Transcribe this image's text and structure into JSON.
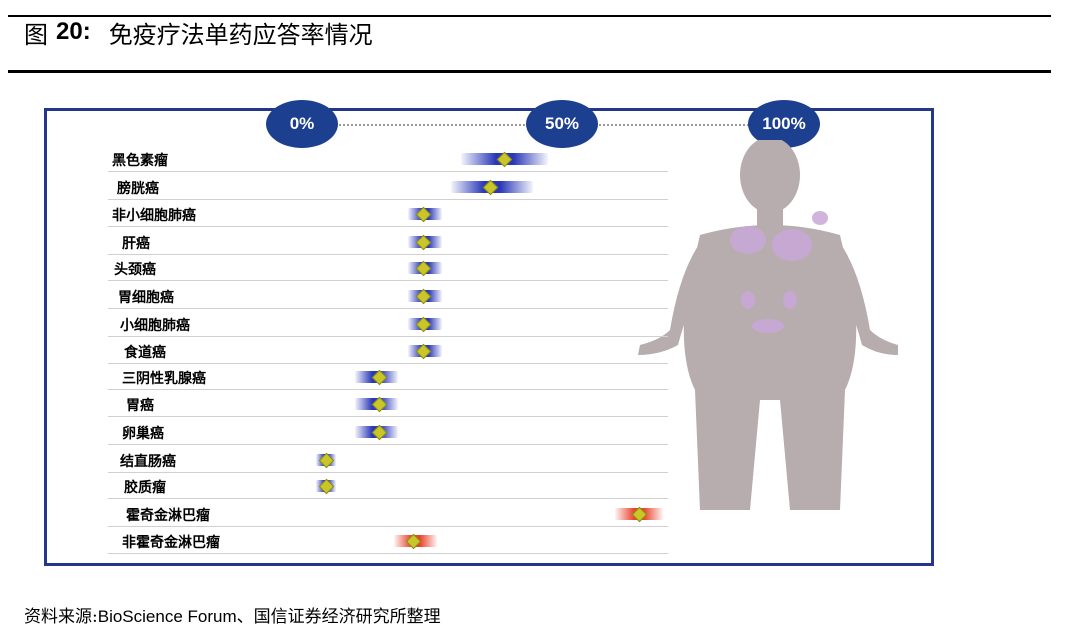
{
  "header": {
    "fig_label": "图",
    "fig_num": "20:",
    "title": "免疫疗法单药应答率情况"
  },
  "chart_data": {
    "type": "range",
    "axis_ticks": [
      "0%",
      "50%",
      "100%"
    ],
    "xlim": [
      0,
      100
    ],
    "categories": [
      "黑色素瘤",
      "膀胱癌",
      "非小细胞肺癌",
      "肝癌",
      "头颈癌",
      "胃细胞癌",
      "小细胞肺癌",
      "食道癌",
      "三阴性乳腺癌",
      "胃癌",
      "卵巢癌",
      "结直肠癌",
      "胶质瘤",
      "霍奇金淋巴瘤",
      "非霍奇金淋巴瘤"
    ],
    "series": [
      {
        "low": 33,
        "mid": 42,
        "high": 51,
        "color": "blue"
      },
      {
        "low": 31,
        "mid": 39,
        "high": 48,
        "color": "blue"
      },
      {
        "low": 22,
        "mid": 25,
        "high": 29,
        "color": "blue"
      },
      {
        "low": 22,
        "mid": 25,
        "high": 29,
        "color": "blue"
      },
      {
        "low": 22,
        "mid": 25,
        "high": 29,
        "color": "blue"
      },
      {
        "low": 22,
        "mid": 25,
        "high": 29,
        "color": "blue"
      },
      {
        "low": 22,
        "mid": 25,
        "high": 29,
        "color": "blue"
      },
      {
        "low": 22,
        "mid": 25,
        "high": 29,
        "color": "blue"
      },
      {
        "low": 11,
        "mid": 16,
        "high": 20,
        "color": "blue"
      },
      {
        "low": 11,
        "mid": 16,
        "high": 20,
        "color": "blue"
      },
      {
        "low": 11,
        "mid": 16,
        "high": 20,
        "color": "blue"
      },
      {
        "low": 3,
        "mid": 5,
        "high": 7,
        "color": "blue"
      },
      {
        "low": 3,
        "mid": 5,
        "high": 7,
        "color": "blue"
      },
      {
        "low": 65,
        "mid": 70,
        "high": 75,
        "color": "red"
      },
      {
        "low": 19,
        "mid": 23,
        "high": 28,
        "color": "red"
      }
    ]
  },
  "source": {
    "prefix": "资料来源:",
    "latin": "BioScience Forum",
    "suffix": "、国信证券经济研究所整理"
  },
  "colors": {
    "tick_fill": "#1c3f8f",
    "frame": "#24378c",
    "blue_bar": "#2a38b8",
    "red_bar": "#e8432c",
    "marker": "#c9c62a"
  }
}
